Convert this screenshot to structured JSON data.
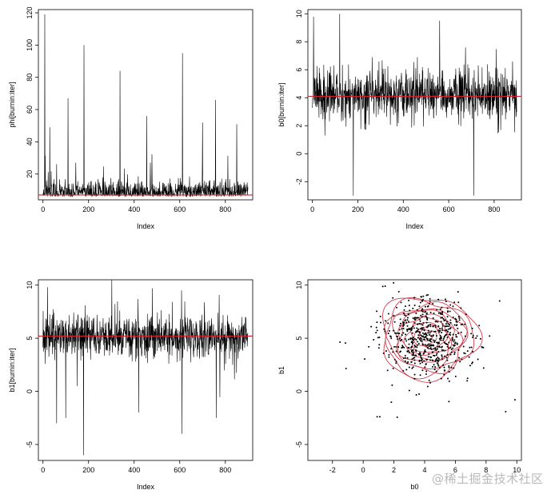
{
  "watermark": "@稀土掘金技术社区",
  "colors": {
    "trace": "#000000",
    "ref_line": "#d02030",
    "contour": "#d04050",
    "point": "#000000"
  },
  "chart_data": [
    {
      "type": "line",
      "xlabel": "Index",
      "ylabel": "phi[burnin:iter]",
      "xlim": [
        -20,
        920
      ],
      "ylim": [
        4,
        122
      ],
      "xticks": [
        0,
        200,
        400,
        600,
        800
      ],
      "yticks": [
        20,
        40,
        60,
        80,
        100,
        120
      ],
      "n": 900,
      "base": 9,
      "noise": 6,
      "spike_rate": 0.04,
      "spike_max": 25,
      "floor": 6,
      "peaks": [
        [
          8,
          119
        ],
        [
          180,
          100
        ],
        [
          338,
          84
        ],
        [
          612,
          95
        ],
        [
          110,
          67
        ],
        [
          757,
          66
        ],
        [
          455,
          56
        ],
        [
          30,
          49
        ],
        [
          850,
          51
        ],
        [
          700,
          52
        ]
      ],
      "hline": 7,
      "seed": 11
    },
    {
      "type": "line",
      "xlabel": "Index",
      "ylabel": "b0[burnin:iter]",
      "xlim": [
        -20,
        920
      ],
      "ylim": [
        -3.3,
        10.3
      ],
      "xticks": [
        0,
        200,
        400,
        600,
        800
      ],
      "yticks": [
        -2,
        0,
        2,
        4,
        6,
        8,
        10
      ],
      "n": 900,
      "base": 4.2,
      "noise": 1.4,
      "spike_rate": 0.05,
      "spike_max": 3,
      "floor": -1,
      "peaks": [
        [
          180,
          -3
        ],
        [
          710,
          -3
        ],
        [
          5,
          9.8
        ],
        [
          120,
          10
        ],
        [
          560,
          9.5
        ]
      ],
      "hline": 4.1,
      "seed": 23
    },
    {
      "type": "line",
      "xlabel": "Index",
      "ylabel": "b1[burnin:iter]",
      "xlim": [
        -20,
        920
      ],
      "ylim": [
        -6.5,
        10.5
      ],
      "xticks": [
        0,
        200,
        400,
        600,
        800
      ],
      "yticks": [
        -5,
        0,
        5,
        10
      ],
      "n": 900,
      "base": 5.2,
      "noise": 1.6,
      "spike_rate": 0.05,
      "spike_max": 4,
      "floor": -3,
      "peaks": [
        [
          178,
          -6
        ],
        [
          610,
          -4
        ],
        [
          60,
          -3
        ],
        [
          100,
          -2.5
        ],
        [
          420,
          -2
        ],
        [
          760,
          -2.5
        ],
        [
          20,
          9.8
        ],
        [
          480,
          9.7
        ]
      ],
      "hline": 5.2,
      "seed": 37
    },
    {
      "type": "scatter",
      "xlabel": "b0",
      "ylabel": "b1",
      "xlim": [
        -3.6,
        10.3
      ],
      "ylim": [
        -6.5,
        10.5
      ],
      "xticks": [
        -2,
        0,
        2,
        4,
        6,
        8,
        10
      ],
      "yticks": [
        -5,
        0,
        5,
        10
      ],
      "n_points": 620,
      "center": [
        4.2,
        5.1
      ],
      "spread": [
        1.7,
        2.2
      ],
      "contour_levels": 11,
      "seed": 53
    }
  ]
}
